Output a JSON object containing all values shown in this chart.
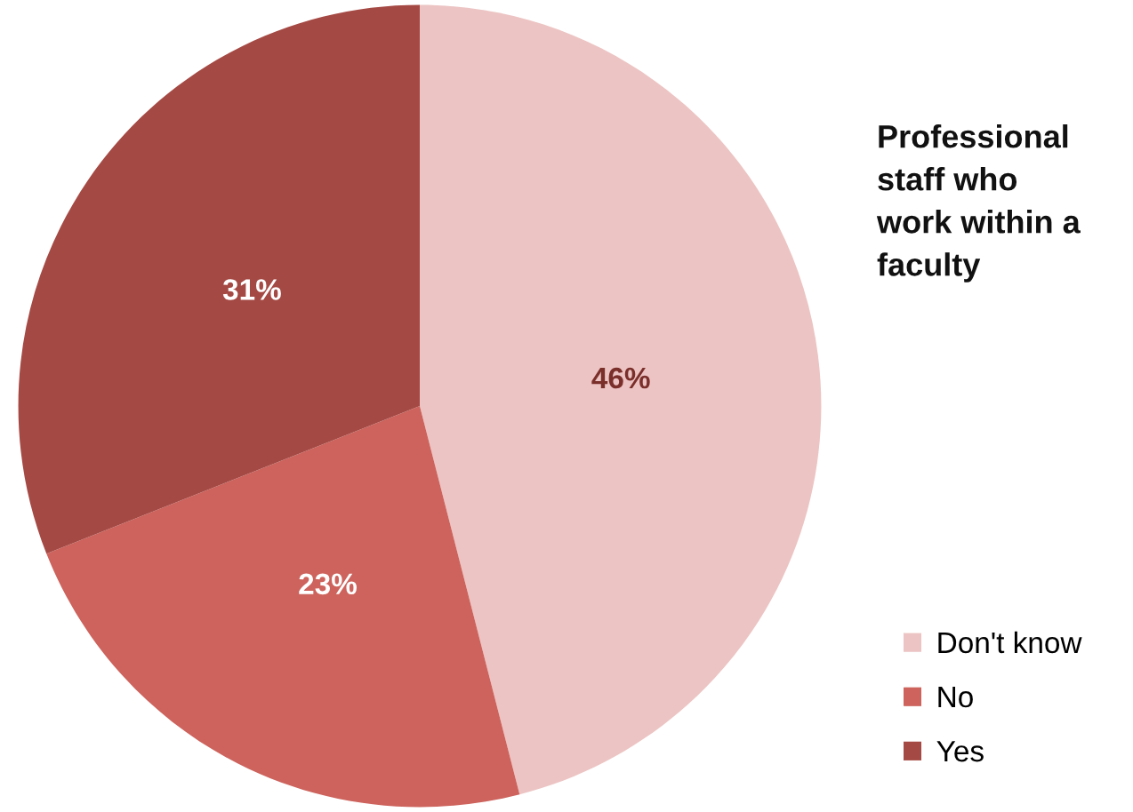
{
  "chart_data": {
    "type": "pie",
    "title": "Professional\nstaff who\nwork within a\nfaculty",
    "categories": [
      "Don't know",
      "No",
      "Yes"
    ],
    "values": [
      46,
      23,
      31
    ],
    "colors": [
      "#ecc4c3",
      "#cd635c",
      "#a54944"
    ],
    "value_labels": [
      "46%",
      "23%",
      "31%"
    ],
    "legend": "bottom right"
  }
}
